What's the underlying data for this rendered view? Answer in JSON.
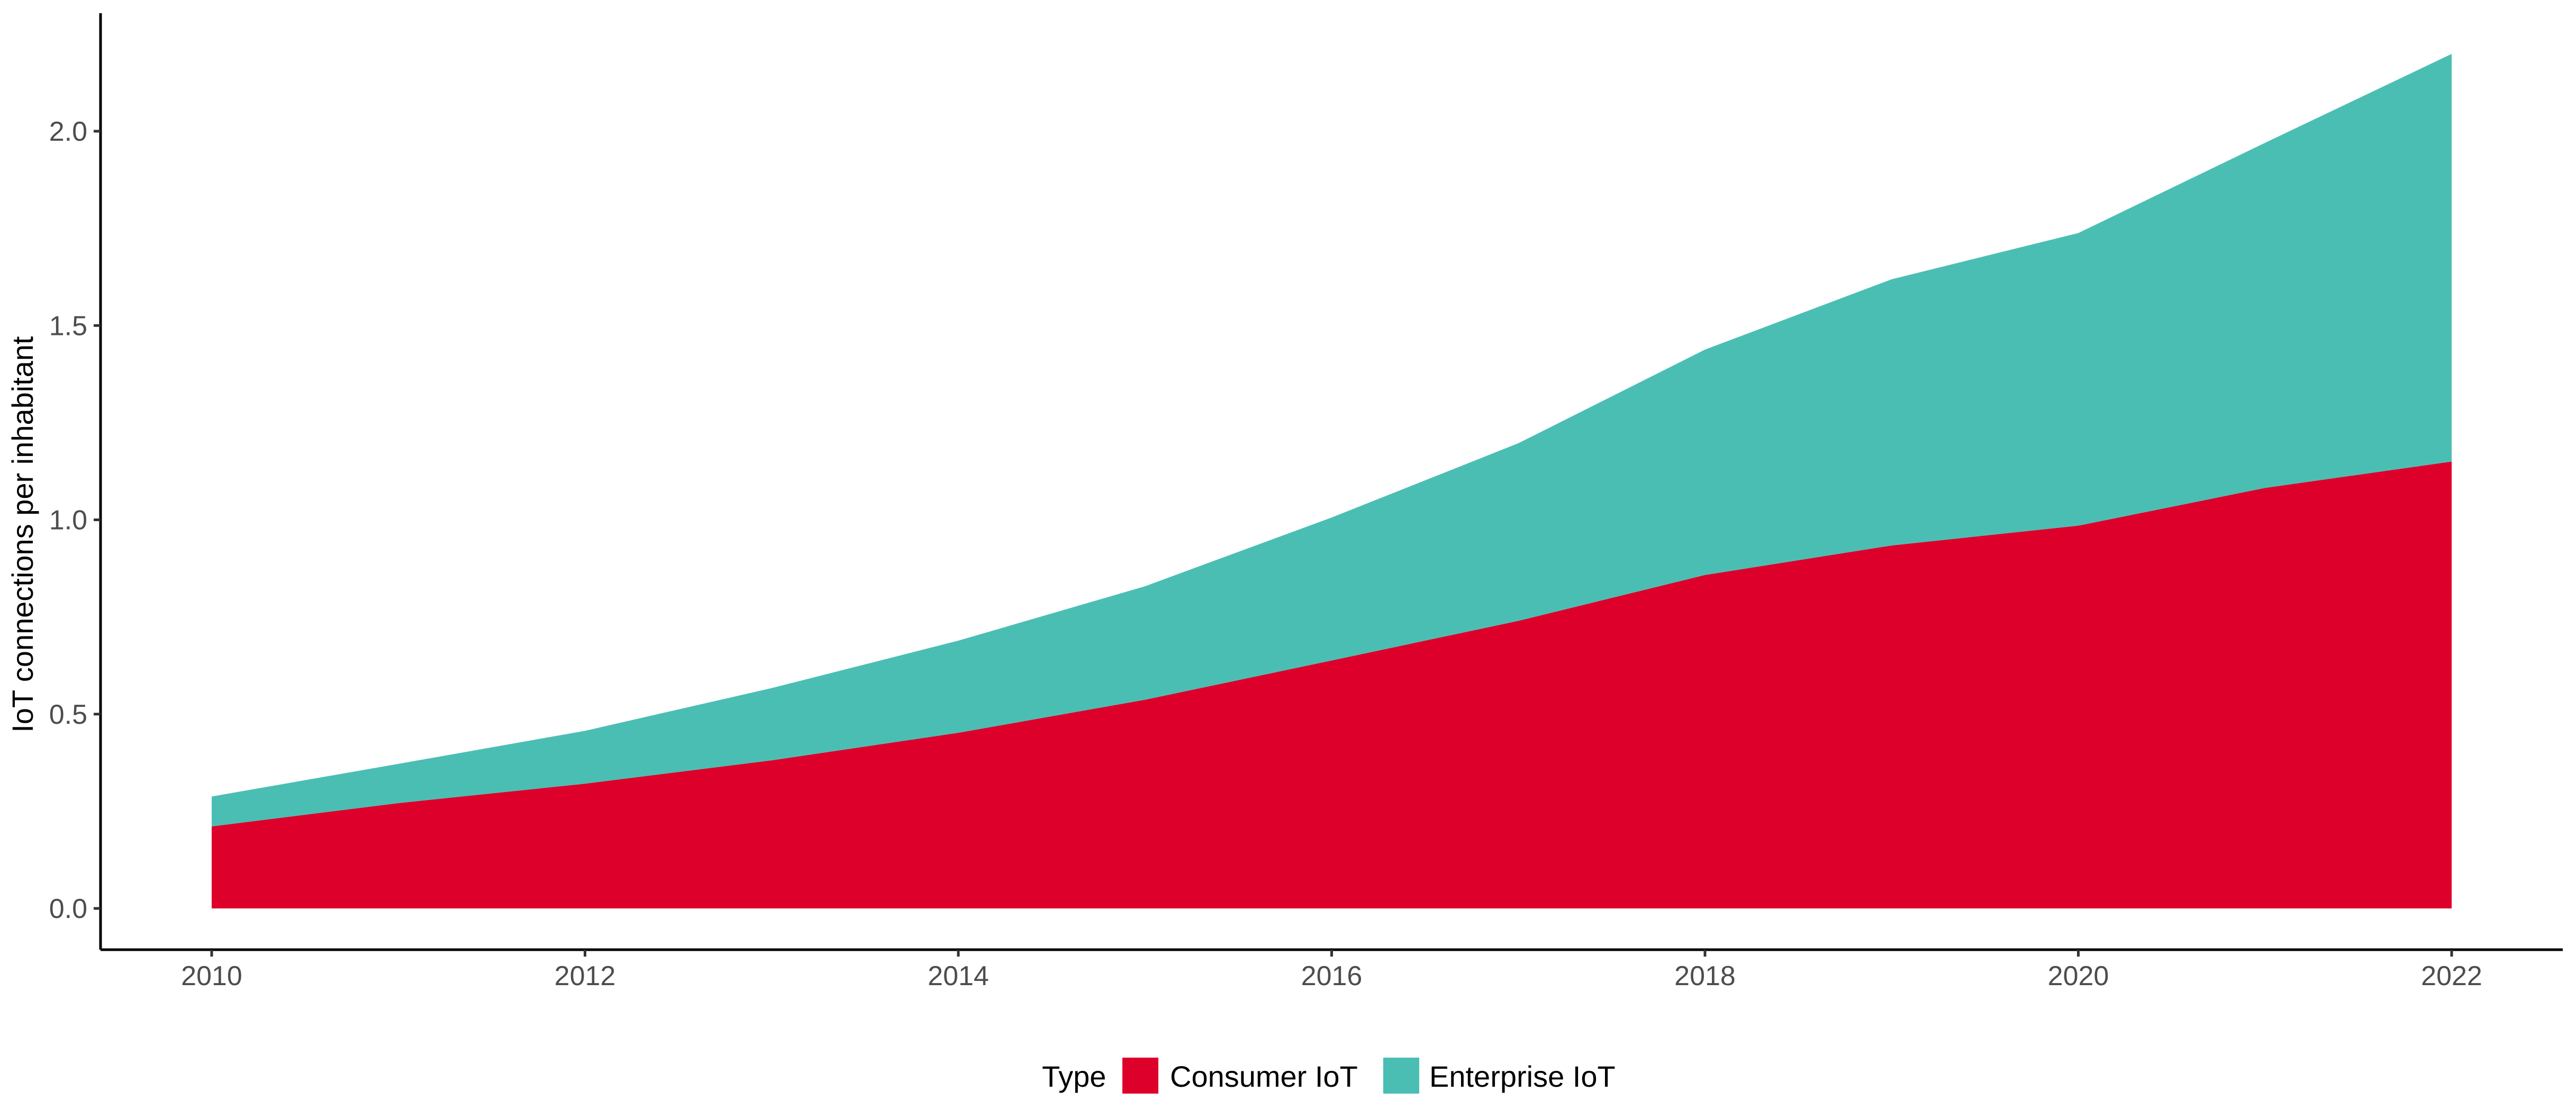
{
  "chart_data": {
    "type": "area",
    "stacked": true,
    "title": "",
    "xlabel": "",
    "ylabel": "IoT connections per inhabitant",
    "x": [
      2010,
      2011,
      2012,
      2013,
      2014,
      2015,
      2016,
      2017,
      2018,
      2019,
      2020,
      2021,
      2022
    ],
    "series": [
      {
        "name": "Consumer IoT",
        "color": "#DC002B",
        "values": [
          0.211,
          0.271,
          0.321,
          0.381,
          0.452,
          0.537,
          0.638,
          0.74,
          0.858,
          0.934,
          0.985,
          1.082,
          1.15
        ]
      },
      {
        "name": "Enterprise IoT",
        "color": "#4BBEB4",
        "values": [
          0.077,
          0.101,
          0.136,
          0.186,
          0.237,
          0.292,
          0.368,
          0.457,
          0.58,
          0.685,
          0.753,
          0.888,
          1.049
        ]
      }
    ],
    "xlim": [
      2009.4,
      2022.6
    ],
    "ylim": [
      -0.11,
      2.32
    ],
    "xticks": [
      "2010",
      "2012",
      "2014",
      "2016",
      "2018",
      "2020",
      "2022"
    ],
    "yticks": [
      "0.0",
      "0.5",
      "1.0",
      "1.5",
      "2.0"
    ],
    "grid": false,
    "legend": {
      "title": "Type",
      "placement": "bottom",
      "entries": [
        "Consumer IoT",
        "Enterprise IoT"
      ]
    }
  }
}
